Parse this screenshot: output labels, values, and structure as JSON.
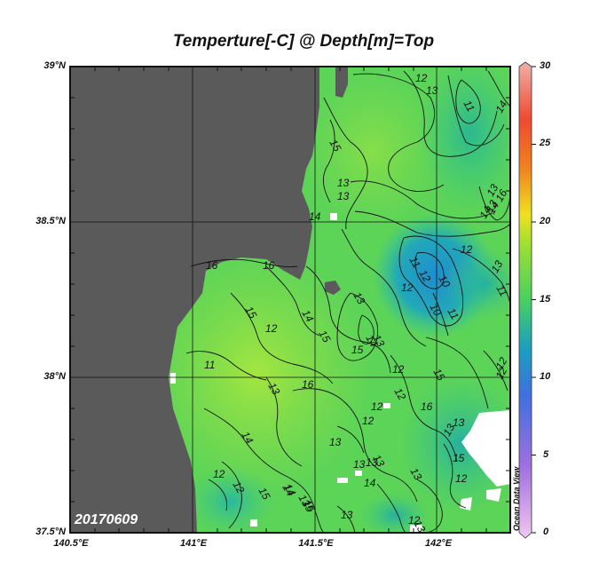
{
  "title": "Temperture[-C] @ Depth[m]=Top",
  "date_label": "20170609",
  "watermark": "Ocean Data View",
  "y_axis": {
    "labels": [
      "39°N",
      "38.5°N",
      "38°N",
      "37.5°N"
    ]
  },
  "x_axis": {
    "labels": [
      "140.5°E",
      "141°E",
      "141.5°E",
      "142°E"
    ]
  },
  "colorbar": {
    "min": 0,
    "max": 30,
    "labels": [
      "30",
      "25",
      "20",
      "15",
      "10",
      "5",
      "0"
    ]
  },
  "contour_labels": [
    "12",
    "13",
    "11",
    "14",
    "15",
    "13",
    "13",
    "14",
    "16",
    "15",
    "14",
    "13",
    "12",
    "11",
    "12",
    "16",
    "14",
    "15",
    "13",
    "12",
    "10",
    "10",
    "11",
    "11",
    "12",
    "11",
    "15",
    "16",
    "13",
    "14",
    "15",
    "14",
    "13",
    "12",
    "12",
    "16",
    "15",
    "14",
    "12",
    "12",
    "13",
    "15",
    "12",
    "13",
    "13",
    "13",
    "13",
    "13",
    "12",
    "12",
    "12",
    "12",
    "13",
    "13",
    "14",
    "13",
    "13",
    "15",
    "14",
    "12",
    "15",
    "16",
    "14",
    "13",
    "13"
  ],
  "colors": {
    "land": "#5a5a5a",
    "frame": "#111111",
    "grid": "#111111"
  }
}
